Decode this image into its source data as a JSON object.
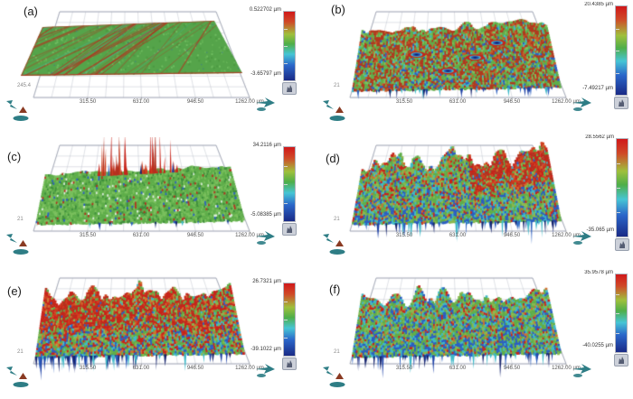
{
  "figure": {
    "description": "Grid of six 3D surface-topography height maps labelled (a) to (f), each with a red-to-blue height colorbar",
    "background": "#ffffff"
  },
  "axis": {
    "x_ticks": [
      "315.50",
      "631.00",
      "946.50",
      "1262.00 µm"
    ]
  },
  "colorbar": {
    "unit": "µm",
    "gradient": [
      "#d0181a",
      "#cf4a28",
      "#9fc03c",
      "#4fae49",
      "#46c5d5",
      "#2b66c9",
      "#1a2a86"
    ],
    "tool_button_icon": "pan-hand-icon"
  },
  "panels": [
    {
      "id": "a",
      "label": "(a)",
      "z_max": "0.522702 µm",
      "z_min": "-3.65797 µm",
      "y_tick_fragment": "245.4",
      "surface": {
        "kind": "flat",
        "base": "#55a44a",
        "streak": "#b23320",
        "fleck": "#49b8c8"
      }
    },
    {
      "id": "b",
      "label": "(b)",
      "z_max": "20.4385 µm",
      "z_min": "-7.49217 µm",
      "y_tick_fragment": "21",
      "surface": {
        "kind": "rough",
        "horizon": 26,
        "amp": 4,
        "spikes_down": 32,
        "spike_len": 8,
        "spikes_up": 0,
        "craters": 4,
        "mod": "",
        "palette": [
          [
            "#b03a1e",
            3,
            2.2
          ],
          [
            "#c85a28",
            1,
            0.6
          ],
          [
            "#5fae4a",
            2.6,
            2
          ],
          [
            "#7cc35e",
            1,
            0.8
          ],
          [
            "#3fb9c8",
            0.5,
            0.7
          ],
          [
            "#2b5fc0",
            0.25,
            1.0
          ]
        ]
      }
    },
    {
      "id": "c",
      "label": "(c)",
      "z_max": "34.2116 µm",
      "z_min": "-5.08385 µm",
      "y_tick_fragment": "21",
      "surface": {
        "kind": "rough",
        "horizon": 36,
        "amp": 2,
        "spikes_down": 10,
        "spike_len": 6,
        "spikes_up": 48,
        "craters": 0,
        "mod": "",
        "palette": [
          [
            "#5fae4a",
            6,
            6
          ],
          [
            "#79bf5c",
            3,
            3
          ],
          [
            "#3f8f3c",
            1.5,
            1.5
          ],
          [
            "#b23320",
            0.5,
            0.45
          ],
          [
            "#2b5fc0",
            0.35,
            0.3
          ],
          [
            "#d9ecd9",
            0.25,
            0.2
          ]
        ]
      }
    },
    {
      "id": "d",
      "label": "(d)",
      "z_max": "28.5562 µm",
      "z_min": "-35.065 µm",
      "y_tick_fragment": "21",
      "surface": {
        "kind": "rough",
        "horizon": 24,
        "amp": 13,
        "spikes_down": 55,
        "spike_len": 14,
        "spikes_up": 0,
        "craters": 0,
        "mod": "redRight",
        "palette": [
          [
            "#c8241a",
            1.6,
            0.5
          ],
          [
            "#d0702e",
            0.8,
            0.4
          ],
          [
            "#5fae4a",
            2.6,
            1.6
          ],
          [
            "#8ab84e",
            1.6,
            1.0
          ],
          [
            "#3fb9c8",
            0.9,
            1.1
          ],
          [
            "#2b5fc0",
            0.5,
            2.4
          ]
        ]
      }
    },
    {
      "id": "e",
      "label": "(e)",
      "z_max": "26.7321 µm",
      "z_min": "-39.1022 µm",
      "y_tick_fragment": "21",
      "surface": {
        "kind": "rough",
        "horizon": 26,
        "amp": 10,
        "spikes_down": 65,
        "spike_len": 16,
        "spikes_up": 0,
        "craters": 0,
        "mod": "redLeft",
        "palette": [
          [
            "#c8241a",
            3.2,
            1.0
          ],
          [
            "#d0702e",
            1.2,
            0.5
          ],
          [
            "#5fae4a",
            2.4,
            1.8
          ],
          [
            "#8ab84e",
            1.2,
            0.9
          ],
          [
            "#3fb9c8",
            0.35,
            0.8
          ],
          [
            "#2b5fc0",
            0.2,
            1.6
          ]
        ]
      }
    },
    {
      "id": "f",
      "label": "(f)",
      "z_max": "35.9578 µm",
      "z_min": "-40.0255 µm",
      "y_tick_fragment": "21",
      "surface": {
        "kind": "rough",
        "horizon": 28,
        "amp": 10,
        "spikes_down": 50,
        "spike_len": 14,
        "spikes_up": 0,
        "craters": 0,
        "mod": "",
        "palette": [
          [
            "#5fae4a",
            3,
            2
          ],
          [
            "#8ab84e",
            1.5,
            1
          ],
          [
            "#3fb9c8",
            1.6,
            1.4
          ],
          [
            "#2b5fc0",
            1.0,
            2.6
          ],
          [
            "#c8241a",
            1.3,
            0.5
          ],
          [
            "#d0702e",
            0.5,
            0.3
          ]
        ]
      }
    }
  ],
  "chart_data": {
    "type": "heatmap",
    "subtype": "3d-surface-topography",
    "title": "",
    "x_axis": {
      "ticks_um": [
        315.5,
        631.0,
        946.5,
        1262.0
      ],
      "unit": "µm",
      "range_um": [
        0,
        1262
      ]
    },
    "colorbar_orientation": "vertical-right",
    "panels": [
      {
        "label": "(a)",
        "z_max_um": 0.522702,
        "z_min_um": -3.65797,
        "appearance": "nearly flat plane, green with diagonal red streaks"
      },
      {
        "label": "(b)",
        "z_max_um": 20.4385,
        "z_min_um": -7.49217,
        "appearance": "mottled red/green surface with blue crater pits and small blue spikes below front edge"
      },
      {
        "label": "(c)",
        "z_max_um": 34.2116,
        "z_min_um": -5.08385,
        "appearance": "flat green surface with clusters of tall red spikes and scattered blue flecks"
      },
      {
        "label": "(d)",
        "z_max_um": 28.5562,
        "z_min_um": -35.065,
        "appearance": "very rough mountainous surface, red ridge at right, blue valleys, deep blue spikes below"
      },
      {
        "label": "(e)",
        "z_max_um": 26.7321,
        "z_min_um": -39.1022,
        "appearance": "rough red-dominated surface with deep blue fringe spikes along front edge"
      },
      {
        "label": "(f)",
        "z_max_um": 35.9578,
        "z_min_um": -40.0255,
        "appearance": "rough green/cyan/blue surface with red central ridge and blue spikes below"
      }
    ]
  }
}
